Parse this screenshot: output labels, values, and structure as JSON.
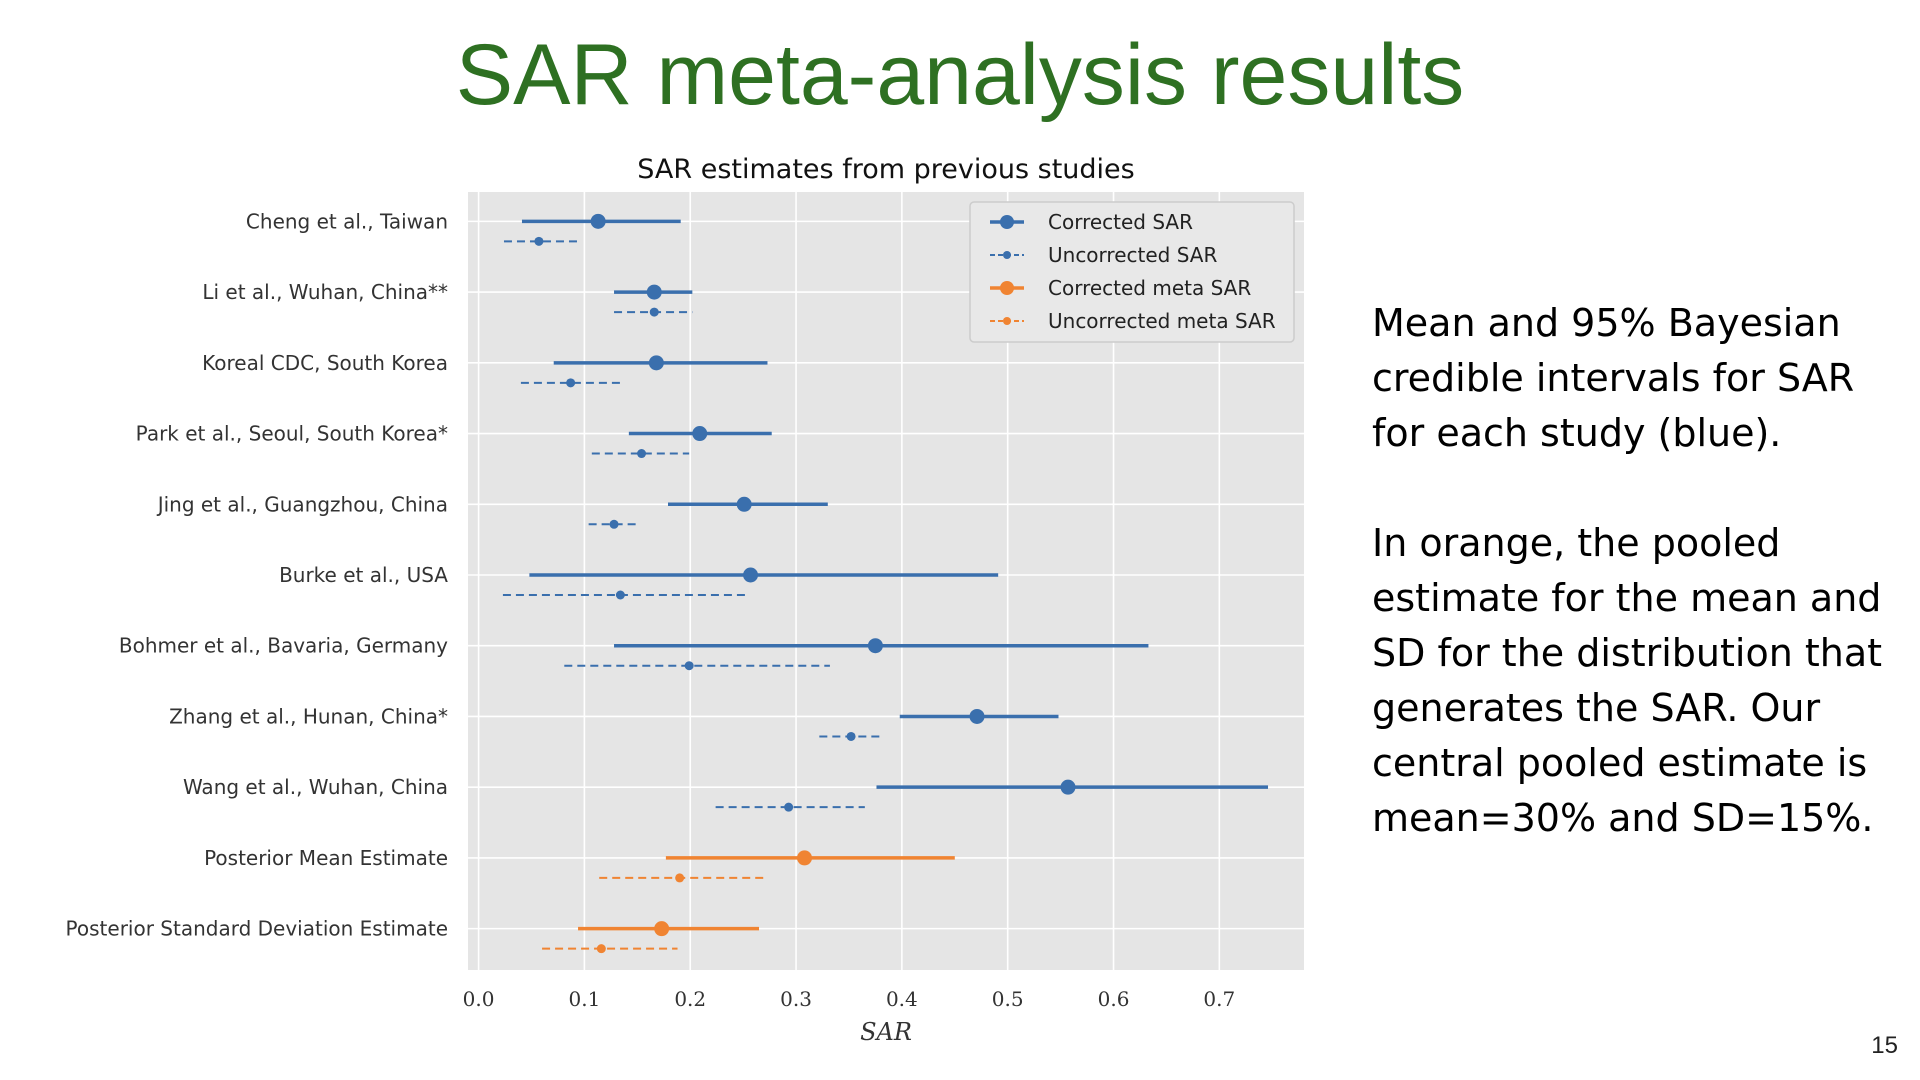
{
  "slide": {
    "title": "SAR meta-analysis results",
    "paragraph1": "Mean and 95% Bayesian credible intervals for SAR for each study (blue).",
    "paragraph2": "In orange, the pooled estimate for the mean and SD for the distribution that generates the SAR. Our central pooled estimate is mean=30% and SD=15%.",
    "page_number": "15"
  },
  "chart_data": {
    "type": "forest",
    "title": "SAR estimates from previous studies",
    "xlabel": "SAR",
    "ylabel": "",
    "xlim": [
      -0.01,
      0.78
    ],
    "xticks": [
      0.0,
      0.1,
      0.2,
      0.3,
      0.4,
      0.5,
      0.6,
      0.7
    ],
    "xtick_labels": [
      "0.0",
      "0.1",
      "0.2",
      "0.3",
      "0.4",
      "0.5",
      "0.6",
      "0.7"
    ],
    "grid": true,
    "legend_position": "top-right",
    "colors": {
      "blue": "#3a6fad",
      "orange": "#f08432",
      "plot_bg": "#e5e5e5",
      "title_green": "#2e7022"
    },
    "legend": [
      {
        "label": "Corrected SAR",
        "color": "#3a6fad",
        "style": "solid"
      },
      {
        "label": "Uncorrected SAR",
        "color": "#3a6fad",
        "style": "dashed"
      },
      {
        "label": "Corrected meta SAR",
        "color": "#f08432",
        "style": "solid"
      },
      {
        "label": "Uncorrected meta SAR",
        "color": "#f08432",
        "style": "dashed"
      }
    ],
    "rows": [
      {
        "label": "Cheng et al., Taiwan",
        "color": "blue",
        "corrected": {
          "mean": 0.113,
          "lo": 0.041,
          "hi": 0.191
        },
        "uncorrected": {
          "mean": 0.057,
          "lo": 0.024,
          "hi": 0.094
        }
      },
      {
        "label": "Li et al., Wuhan, China**",
        "color": "blue",
        "corrected": {
          "mean": 0.166,
          "lo": 0.128,
          "hi": 0.202
        },
        "uncorrected": {
          "mean": 0.166,
          "lo": 0.128,
          "hi": 0.202
        }
      },
      {
        "label": "Koreal CDC, South Korea",
        "color": "blue",
        "corrected": {
          "mean": 0.168,
          "lo": 0.071,
          "hi": 0.273
        },
        "uncorrected": {
          "mean": 0.087,
          "lo": 0.04,
          "hi": 0.136
        }
      },
      {
        "label": "Park et al., Seoul, South Korea*",
        "color": "blue",
        "corrected": {
          "mean": 0.209,
          "lo": 0.142,
          "hi": 0.277
        },
        "uncorrected": {
          "mean": 0.154,
          "lo": 0.107,
          "hi": 0.199
        }
      },
      {
        "label": "Jing et al., Guangzhou, China",
        "color": "blue",
        "corrected": {
          "mean": 0.251,
          "lo": 0.179,
          "hi": 0.33
        },
        "uncorrected": {
          "mean": 0.128,
          "lo": 0.104,
          "hi": 0.151
        }
      },
      {
        "label": "Burke et al., USA",
        "color": "blue",
        "corrected": {
          "mean": 0.257,
          "lo": 0.048,
          "hi": 0.491
        },
        "uncorrected": {
          "mean": 0.134,
          "lo": 0.023,
          "hi": 0.253
        }
      },
      {
        "label": "Bohmer et al., Bavaria, Germany",
        "color": "blue",
        "corrected": {
          "mean": 0.375,
          "lo": 0.128,
          "hi": 0.633
        },
        "uncorrected": {
          "mean": 0.199,
          "lo": 0.081,
          "hi": 0.332
        }
      },
      {
        "label": "Zhang et al., Hunan, China*",
        "color": "blue",
        "corrected": {
          "mean": 0.471,
          "lo": 0.398,
          "hi": 0.548
        },
        "uncorrected": {
          "mean": 0.352,
          "lo": 0.322,
          "hi": 0.383
        }
      },
      {
        "label": "Wang et al., Wuhan, China",
        "color": "blue",
        "corrected": {
          "mean": 0.557,
          "lo": 0.376,
          "hi": 0.746
        },
        "uncorrected": {
          "mean": 0.293,
          "lo": 0.224,
          "hi": 0.365
        }
      },
      {
        "label": "Posterior Mean Estimate",
        "color": "orange",
        "corrected": {
          "mean": 0.308,
          "lo": 0.177,
          "hi": 0.45
        },
        "uncorrected": {
          "mean": 0.19,
          "lo": 0.114,
          "hi": 0.273
        }
      },
      {
        "label": "Posterior Standard Deviation Estimate",
        "color": "orange",
        "corrected": {
          "mean": 0.173,
          "lo": 0.094,
          "hi": 0.265
        },
        "uncorrected": {
          "mean": 0.116,
          "lo": 0.06,
          "hi": 0.188
        }
      }
    ]
  }
}
